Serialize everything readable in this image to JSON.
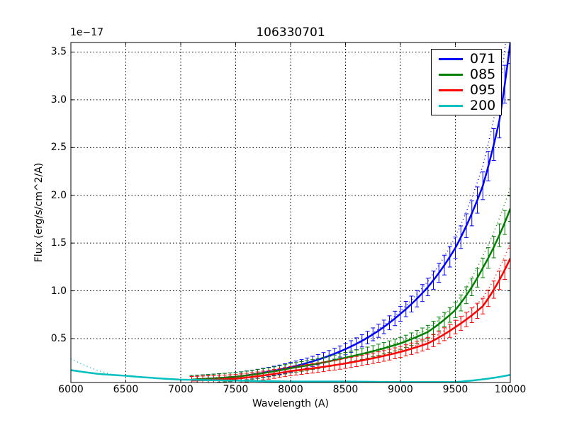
{
  "chart_data": {
    "type": "line",
    "title": "106330701",
    "xlabel": "Wavelength (A)",
    "ylabel": "Flux (erg/s/cm^2/A)",
    "y_offset_label": "1e−17",
    "xlim": [
      6000,
      10000
    ],
    "ylim": [
      0.04,
      3.6
    ],
    "x_ticks": [
      "6000",
      "6500",
      "7000",
      "7500",
      "8000",
      "8500",
      "9000",
      "9500",
      "10000"
    ],
    "y_ticks": [
      "0.5",
      "1.0",
      "1.5",
      "2.0",
      "2.5",
      "3.0",
      "3.5"
    ],
    "grid": true,
    "legend_position": "upper right",
    "series": [
      {
        "name": "071",
        "color": "#0000ff",
        "has_error_bars": true,
        "has_dotted_model": true,
        "x": [
          7100,
          7500,
          8000,
          8500,
          9000,
          9250,
          9500,
          9750,
          9900,
          10000
        ],
        "values": [
          0.07,
          0.1,
          0.2,
          0.39,
          0.76,
          1.04,
          1.45,
          2.1,
          2.78,
          3.6
        ]
      },
      {
        "name": "085",
        "color": "#008000",
        "has_error_bars": true,
        "has_dotted_model": true,
        "x": [
          7100,
          7500,
          8000,
          8500,
          9000,
          9250,
          9500,
          9750,
          10000
        ],
        "values": [
          0.07,
          0.1,
          0.19,
          0.3,
          0.45,
          0.57,
          0.8,
          1.24,
          1.86
        ]
      },
      {
        "name": "095",
        "color": "#ff0000",
        "has_error_bars": true,
        "has_dotted_model": true,
        "x": [
          7100,
          7500,
          8000,
          8500,
          9000,
          9250,
          9500,
          9750,
          10000
        ],
        "values": [
          0.06,
          0.08,
          0.16,
          0.24,
          0.36,
          0.45,
          0.62,
          0.84,
          1.34
        ]
      },
      {
        "name": "200",
        "color": "#00bfbf",
        "has_error_bars": false,
        "has_dotted_model": true,
        "x": [
          6000,
          6250,
          6500,
          7000,
          7500,
          8000,
          8500,
          9000,
          9500,
          10000
        ],
        "values": [
          0.17,
          0.13,
          0.11,
          0.07,
          0.06,
          0.05,
          0.05,
          0.045,
          0.045,
          0.12
        ]
      }
    ]
  }
}
